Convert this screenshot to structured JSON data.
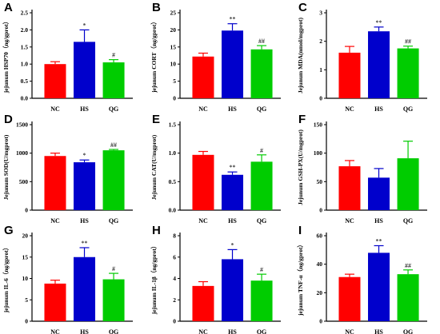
{
  "colors": {
    "NC": "#ff0000",
    "HS": "#0000cc",
    "QG": "#00cc00",
    "axis": "#000000"
  },
  "chart_data": [
    {
      "panel": "A",
      "type": "bar",
      "ylabel": "jejunum HSP70（ng/gprot）",
      "categories": [
        "NC",
        "HS",
        "QG"
      ],
      "values": [
        1.0,
        1.65,
        1.05
      ],
      "errors": [
        0.07,
        0.35,
        0.08
      ],
      "annotations": [
        "",
        "*",
        "#"
      ],
      "ylim": [
        0,
        2.5
      ],
      "ticks": [
        0.0,
        0.5,
        1.0,
        1.5,
        2.0,
        2.5
      ]
    },
    {
      "panel": "B",
      "type": "bar",
      "ylabel": "jejunum CORT（ng/gprot）",
      "categories": [
        "NC",
        "HS",
        "QG"
      ],
      "values": [
        12.2,
        19.8,
        14.3
      ],
      "errors": [
        1.0,
        2.0,
        1.1
      ],
      "annotations": [
        "",
        "**",
        "##"
      ],
      "ylim": [
        0,
        25
      ],
      "ticks": [
        0,
        5,
        10,
        15,
        20,
        25
      ]
    },
    {
      "panel": "C",
      "type": "bar",
      "ylabel": "Jejunum MDA(nmol/mgprot)",
      "categories": [
        "NC",
        "HS",
        "QG"
      ],
      "values": [
        1.6,
        2.35,
        1.75
      ],
      "errors": [
        0.22,
        0.15,
        0.08
      ],
      "annotations": [
        "",
        "**",
        "##"
      ],
      "ylim": [
        0,
        3
      ],
      "ticks": [
        0,
        1,
        2,
        3
      ]
    },
    {
      "panel": "D",
      "type": "bar",
      "ylabel": "Jejunum SOD(U/mgprot)",
      "categories": [
        "NC",
        "HS",
        "QG"
      ],
      "values": [
        950,
        840,
        1050
      ],
      "errors": [
        50,
        40,
        15
      ],
      "annotations": [
        "",
        "*",
        "##"
      ],
      "ylim": [
        0,
        1500
      ],
      "ticks": [
        0,
        500,
        1000,
        1500
      ]
    },
    {
      "panel": "E",
      "type": "bar",
      "ylabel": "Jejunum CAT(U/mgprot)",
      "categories": [
        "NC",
        "HS",
        "QG"
      ],
      "values": [
        0.97,
        0.62,
        0.85
      ],
      "errors": [
        0.06,
        0.05,
        0.12
      ],
      "annotations": [
        "",
        "**",
        "#"
      ],
      "ylim": [
        0,
        1.5
      ],
      "ticks": [
        0.0,
        0.5,
        1.0,
        1.5
      ]
    },
    {
      "panel": "F",
      "type": "bar",
      "ylabel": "Jejunum GSH-PX(U/mgprot)",
      "categories": [
        "NC",
        "HS",
        "QG"
      ],
      "values": [
        77,
        57,
        91
      ],
      "errors": [
        10,
        16,
        30
      ],
      "annotations": [
        "",
        "",
        ""
      ],
      "ylim": [
        0,
        150
      ],
      "ticks": [
        0,
        50,
        100,
        150
      ]
    },
    {
      "panel": "G",
      "type": "bar",
      "ylabel": "jejunum IL-6（ng/gprot）",
      "categories": [
        "NC",
        "HS",
        "QG"
      ],
      "values": [
        8.8,
        15.0,
        9.8
      ],
      "errors": [
        0.8,
        2.2,
        1.4
      ],
      "annotations": [
        "",
        "**",
        "#"
      ],
      "ylim": [
        0,
        20
      ],
      "ticks": [
        0,
        5,
        10,
        15,
        20
      ]
    },
    {
      "panel": "H",
      "type": "bar",
      "ylabel": "jejunum IL-1β（ng/gprot）",
      "categories": [
        "NC",
        "HS",
        "QG"
      ],
      "values": [
        3.3,
        5.8,
        3.8
      ],
      "errors": [
        0.4,
        0.9,
        0.6
      ],
      "annotations": [
        "",
        "*",
        "#"
      ],
      "ylim": [
        0,
        8
      ],
      "ticks": [
        0,
        2,
        4,
        6,
        8
      ]
    },
    {
      "panel": "I",
      "type": "bar",
      "ylabel": "jejunum TNF-α（ng/gprot）",
      "categories": [
        "NC",
        "HS",
        "QG"
      ],
      "values": [
        31,
        48,
        33
      ],
      "errors": [
        2,
        5,
        3
      ],
      "annotations": [
        "",
        "**",
        "##"
      ],
      "ylim": [
        0,
        60
      ],
      "ticks": [
        0,
        20,
        40,
        60
      ]
    }
  ]
}
